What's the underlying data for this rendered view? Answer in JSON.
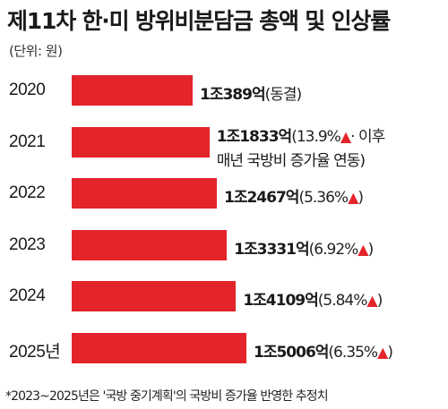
{
  "title": "제11차 한·미 방위비분담금 총액 및 인상률",
  "unit": "(단위: 원)",
  "footnote": "*2023~2025년은 '국방 중기계획'의 국방비 증가율 반영한 추정치",
  "colors": {
    "bar": "#e3242b",
    "arrow": "#e3242b"
  },
  "chart_data": {
    "type": "bar",
    "orientation": "horizontal",
    "unit": "원",
    "categories": [
      "2020",
      "2021",
      "2022",
      "2023",
      "2024",
      "2025년"
    ],
    "values": [
      10389,
      11833,
      12467,
      13331,
      14109,
      15006
    ],
    "value_unit": "억원",
    "labels": [
      {
        "amount": "1조389억",
        "note": "(동결)",
        "arrow": false,
        "line2": ""
      },
      {
        "amount": "1조1833억",
        "note": "(13.9%",
        "arrow": true,
        "note_after": "· 이후",
        "line2": "매년 국방비 증가율 연동)"
      },
      {
        "amount": "1조2467억",
        "note": "(5.36%",
        "arrow": true,
        "note_after": ")",
        "line2": ""
      },
      {
        "amount": "1조3331억",
        "note": "(6.92%",
        "arrow": true,
        "note_after": ")",
        "line2": ""
      },
      {
        "amount": "1조4109억",
        "note": "(5.84%",
        "arrow": true,
        "note_after": ")",
        "line2": ""
      },
      {
        "amount": "1조5006억",
        "note": "(6.35%",
        "arrow": true,
        "note_after": ")",
        "line2": ""
      }
    ],
    "arrow_glyph": "🠉"
  }
}
